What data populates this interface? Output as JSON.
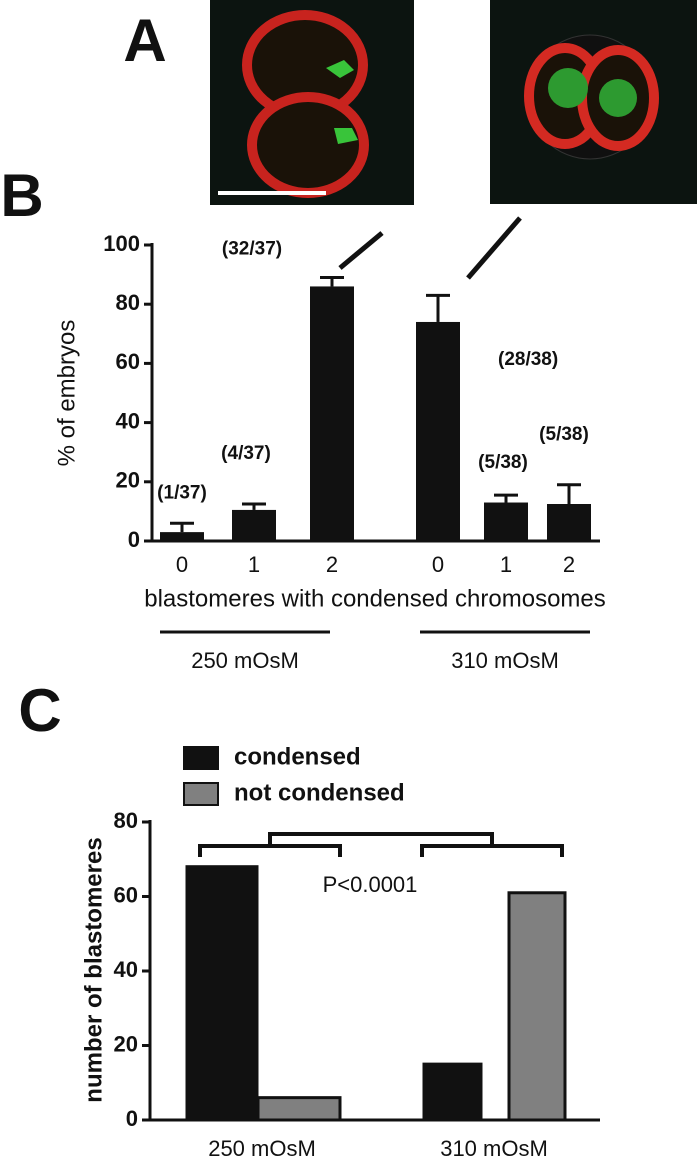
{
  "panel_labels": [
    "A",
    "B",
    "C"
  ],
  "chart_data": [
    {
      "type": "bar",
      "ylabel": "% of embryos",
      "xlabel": "blastomeres with condensed chromosomes",
      "categories": [
        "0",
        "1",
        "2",
        "0",
        "1",
        "2"
      ],
      "groups": [
        "250 mOsM",
        "310 mOsM"
      ],
      "values": [
        3,
        10.5,
        86,
        74,
        13,
        12.5
      ],
      "errors": [
        3,
        2,
        3,
        9,
        2.5,
        6.5
      ],
      "annotations": [
        "(1/37)",
        "(4/37)",
        "(32/37)",
        "(28/38)",
        "(5/38)",
        "(5/38)"
      ],
      "color": "#111111",
      "ylim": [
        0,
        100
      ],
      "yticks": [
        0,
        20,
        40,
        60,
        80,
        100
      ]
    },
    {
      "type": "grouped_bar",
      "ylabel": "number of blastomeres",
      "categories": [
        "250 mOsM",
        "310 mOsM"
      ],
      "series": [
        {
          "name": "condensed",
          "color": "#111111",
          "values": [
            68,
            15
          ]
        },
        {
          "name": "not condensed",
          "color": "#808080",
          "values": [
            6,
            61
          ]
        }
      ],
      "annotation": "P<0.0001",
      "ylim": [
        0,
        80
      ],
      "yticks": [
        0,
        20,
        40,
        60,
        80
      ]
    }
  ]
}
